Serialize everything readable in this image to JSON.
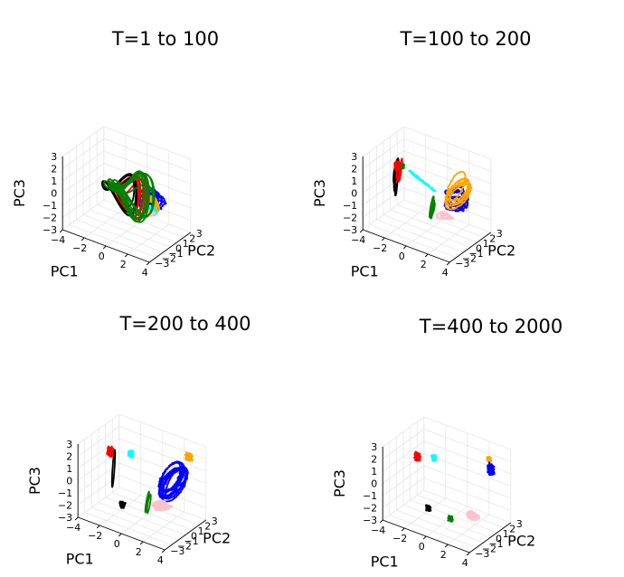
{
  "chart_data": [
    {
      "type": "line",
      "title": "T=1 to 100",
      "xlabel": "PC1",
      "ylabel": "PC2",
      "zlabel": "PC3",
      "xlim": [
        -4,
        4
      ],
      "ylim": [
        -3,
        3
      ],
      "zlim": [
        -3,
        3
      ],
      "xticks": [
        "−4",
        "−2",
        "0",
        "2",
        "4"
      ],
      "yticks": [
        "−3",
        "−2",
        "−1",
        "0",
        "1",
        "2",
        "3"
      ],
      "zticks": [
        "−3",
        "−2",
        "−1",
        "0",
        "1",
        "2",
        "3"
      ],
      "grid": true,
      "series": [
        {
          "name": "blue",
          "color": "#0000ff",
          "kind": "loops",
          "center": [
            2.0,
            0.5,
            0.0
          ],
          "spread": [
            1.4,
            1.2,
            1.8
          ],
          "count": 7
        },
        {
          "name": "orange",
          "color": "#ffa500",
          "kind": "loops",
          "center": [
            2.1,
            0.2,
            -0.2
          ],
          "spread": [
            1.1,
            1.0,
            1.5
          ],
          "count": 7
        },
        {
          "name": "cyan",
          "color": "#00ffff",
          "kind": "loops",
          "center": [
            2.3,
            0.0,
            -0.6
          ],
          "spread": [
            0.6,
            0.5,
            0.8
          ],
          "count": 3
        },
        {
          "name": "pink",
          "color": "#ffc0cb",
          "kind": "loops",
          "center": [
            2.2,
            0.0,
            -0.8
          ],
          "spread": [
            0.5,
            0.5,
            0.6
          ],
          "count": 2
        },
        {
          "name": "red",
          "color": "#ff0000",
          "kind": "figure8",
          "center": [
            0.0,
            0.0,
            0.2
          ],
          "spread": [
            2.5,
            0.9,
            2.3
          ],
          "count": 6
        },
        {
          "name": "black",
          "color": "#000000",
          "kind": "figure8",
          "center": [
            -0.6,
            0.2,
            0.0
          ],
          "spread": [
            2.0,
            0.7,
            2.2
          ],
          "count": 3
        },
        {
          "name": "green",
          "color": "#008000",
          "kind": "figure8",
          "center": [
            0.3,
            0.1,
            0.2
          ],
          "spread": [
            2.3,
            0.8,
            2.3
          ],
          "count": 8
        }
      ]
    },
    {
      "type": "line",
      "title": "T=100 to 200",
      "xlabel": "PC1",
      "ylabel": "PC2",
      "zlabel": "PC3",
      "xlim": [
        -4,
        4
      ],
      "ylim": [
        -3,
        3
      ],
      "zlim": [
        -3,
        3
      ],
      "xticks": [
        "−4",
        "−2",
        "0",
        "2",
        "4"
      ],
      "yticks": [
        "−3",
        "−2",
        "−1",
        "0",
        "1",
        "2",
        "3"
      ],
      "zticks": [
        "−3",
        "−2",
        "−1",
        "0",
        "1",
        "2",
        "3"
      ],
      "grid": true,
      "series": [
        {
          "name": "black",
          "color": "#000000",
          "kind": "column",
          "center": [
            -3.1,
            0.4,
            0.4
          ],
          "spread": [
            0.5,
            0.3,
            3.2
          ],
          "count": 3
        },
        {
          "name": "red",
          "color": "#ff0000",
          "kind": "column",
          "center": [
            -2.9,
            0.6,
            0.9
          ],
          "spread": [
            0.5,
            0.3,
            2.4
          ],
          "count": 2
        },
        {
          "name": "blue",
          "color": "#0000ff",
          "kind": "loops",
          "center": [
            2.2,
            0.7,
            0.0
          ],
          "spread": [
            1.4,
            1.4,
            2.0
          ],
          "count": 8
        },
        {
          "name": "orange",
          "color": "#ffa500",
          "kind": "sheet",
          "center": [
            2.3,
            1.1,
            0.6
          ],
          "spread": [
            1.6,
            1.4,
            2.8
          ],
          "count": 6
        },
        {
          "name": "pink",
          "color": "#ffc0cb",
          "kind": "loops",
          "center": [
            1.8,
            -0.2,
            -1.1
          ],
          "spread": [
            1.0,
            0.6,
            0.5
          ],
          "count": 3
        },
        {
          "name": "cyan",
          "color": "#00ffff",
          "kind": "path",
          "center": [
            -0.6,
            0.4,
            0.7
          ],
          "spread": [
            2.2,
            0.5,
            1.0
          ],
          "count": 2
        },
        {
          "name": "green",
          "color": "#008000",
          "kind": "column",
          "center": [
            0.9,
            -0.6,
            -0.7
          ],
          "spread": [
            0.4,
            0.5,
            2.0
          ],
          "count": 3
        },
        {
          "name": "red-blob",
          "color": "#ff0000",
          "kind": "blob",
          "center": [
            -3.0,
            0.5,
            1.1
          ],
          "spread": [
            0.25,
            0.15,
            0.35
          ],
          "count": 1
        },
        {
          "name": "green-blob",
          "color": "#008000",
          "kind": "blob",
          "center": [
            -2.6,
            0.6,
            1.2
          ],
          "spread": [
            0.1,
            0.08,
            0.15
          ],
          "count": 1
        }
      ]
    },
    {
      "type": "line",
      "title": "T=200 to 400",
      "xlabel": "PC1",
      "ylabel": "PC2",
      "zlabel": "PC3",
      "xlim": [
        -4,
        4
      ],
      "ylim": [
        -3,
        3
      ],
      "zlim": [
        -3,
        3
      ],
      "xticks": [
        "−4",
        "−2",
        "0",
        "2",
        "4"
      ],
      "yticks": [
        "−3",
        "−2",
        "−1",
        "0",
        "1",
        "2",
        "3"
      ],
      "zticks": [
        "−3",
        "−2",
        "−1",
        "0",
        "1",
        "2",
        "3"
      ],
      "grid": true,
      "series": [
        {
          "name": "black",
          "color": "#000000",
          "kind": "column",
          "center": [
            -3.0,
            0.6,
            0.2
          ],
          "spread": [
            0.4,
            0.3,
            4.2
          ],
          "count": 1
        },
        {
          "name": "red",
          "color": "#ff0000",
          "kind": "blob",
          "center": [
            -3.2,
            0.4,
            1.3
          ],
          "spread": [
            0.25,
            0.15,
            0.35
          ],
          "count": 1
        },
        {
          "name": "cyan",
          "color": "#00ffff",
          "kind": "blob",
          "center": [
            -1.4,
            0.6,
            1.6
          ],
          "spread": [
            0.2,
            0.12,
            0.25
          ],
          "count": 1
        },
        {
          "name": "black-blob",
          "color": "#000000",
          "kind": "blob",
          "center": [
            -1.4,
            -0.6,
            -2.1
          ],
          "spread": [
            0.2,
            0.12,
            0.25
          ],
          "count": 1
        },
        {
          "name": "blue",
          "color": "#0000ff",
          "kind": "sheet",
          "center": [
            2.2,
            1.0,
            0.4
          ],
          "spread": [
            1.6,
            1.6,
            3.2
          ],
          "count": 12
        },
        {
          "name": "pink",
          "color": "#ffc0cb",
          "kind": "loops",
          "center": [
            2.0,
            -0.3,
            -1.2
          ],
          "spread": [
            1.2,
            0.8,
            0.6
          ],
          "count": 8
        },
        {
          "name": "orange",
          "color": "#ffa500",
          "kind": "blob",
          "center": [
            3.2,
            1.8,
            2.4
          ],
          "spread": [
            0.25,
            0.18,
            0.3
          ],
          "count": 1
        },
        {
          "name": "green",
          "color": "#008000",
          "kind": "column",
          "center": [
            1.0,
            -0.7,
            -1.2
          ],
          "spread": [
            0.4,
            0.5,
            1.6
          ],
          "count": 2
        }
      ]
    },
    {
      "type": "scatter",
      "title": "T=400 to 2000",
      "xlabel": "PC1",
      "ylabel": "PC2",
      "zlabel": "PC3",
      "xlim": [
        -4,
        4
      ],
      "ylim": [
        -3,
        3
      ],
      "zlim": [
        -3,
        3
      ],
      "xticks": [
        "−4",
        "−2",
        "0",
        "2",
        "4"
      ],
      "yticks": [
        "−3",
        "−2",
        "−1",
        "0",
        "1",
        "2",
        "3"
      ],
      "zticks": [
        "−3",
        "−2",
        "−1",
        "0",
        "1",
        "2",
        "3"
      ],
      "grid": true,
      "series": [
        {
          "name": "red",
          "color": "#ff0000",
          "kind": "blob",
          "center": [
            -2.9,
            0.3,
            1.2
          ],
          "spread": [
            0.22,
            0.14,
            0.3
          ],
          "count": 1
        },
        {
          "name": "cyan",
          "color": "#00ffff",
          "kind": "blob",
          "center": [
            -1.5,
            0.5,
            1.5
          ],
          "spread": [
            0.18,
            0.1,
            0.22
          ],
          "count": 1
        },
        {
          "name": "black",
          "color": "#000000",
          "kind": "blob",
          "center": [
            -1.3,
            -0.6,
            -2.1
          ],
          "spread": [
            0.2,
            0.12,
            0.22
          ],
          "count": 1
        },
        {
          "name": "green",
          "color": "#008000",
          "kind": "blob",
          "center": [
            0.6,
            -0.4,
            -2.4
          ],
          "spread": [
            0.18,
            0.1,
            0.2
          ],
          "count": 1
        },
        {
          "name": "pink",
          "color": "#ffc0cb",
          "kind": "loops",
          "center": [
            2.4,
            -0.2,
            -1.6
          ],
          "spread": [
            0.9,
            0.5,
            0.6
          ],
          "count": 4
        },
        {
          "name": "orange",
          "color": "#ffa500",
          "kind": "blob",
          "center": [
            2.7,
            1.9,
            2.2
          ],
          "spread": [
            0.15,
            0.1,
            0.2
          ],
          "count": 1
        },
        {
          "name": "blue",
          "color": "#0000ff",
          "kind": "blob",
          "center": [
            3.0,
            1.7,
            1.6
          ],
          "spread": [
            0.25,
            0.15,
            0.45
          ],
          "count": 1
        }
      ]
    }
  ]
}
